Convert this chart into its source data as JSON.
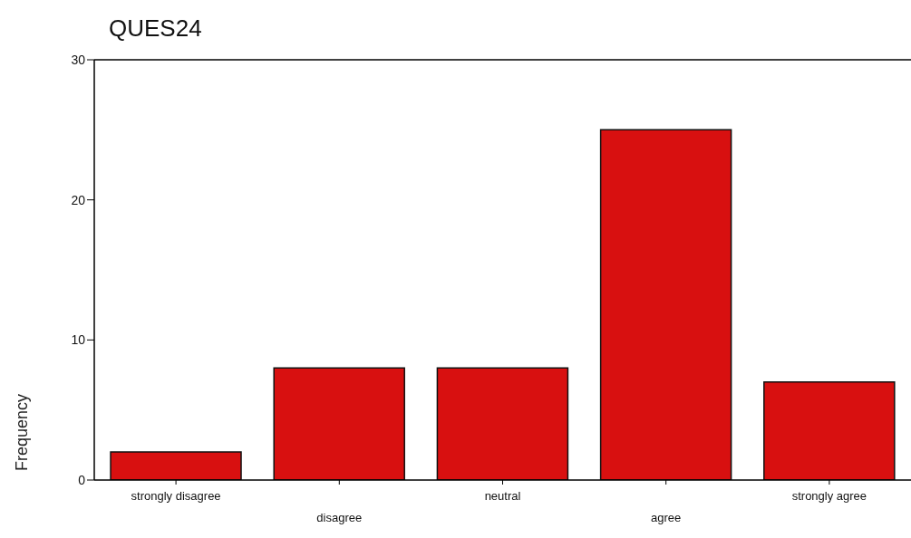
{
  "chart_data": {
    "type": "bar",
    "title": "QUES24",
    "ylabel": "Frequency",
    "categories": [
      "strongly disagree",
      "disagree",
      "neutral",
      "agree",
      "strongly agree"
    ],
    "values": [
      2,
      8,
      8,
      25,
      7
    ],
    "color": "#d81010",
    "ylim": [
      0,
      30
    ],
    "yticks": [
      0,
      10,
      20,
      30
    ],
    "grid": false,
    "legend": false
  }
}
